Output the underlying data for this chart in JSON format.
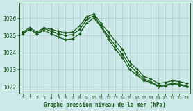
{
  "title": "Graphe pression niveau de la mer (hPa)",
  "background_color": "#cce8e8",
  "grid_color": "#aacccc",
  "line_color": "#1a5c1a",
  "ylim": [
    1021.6,
    1026.9
  ],
  "yticks": [
    1022,
    1023,
    1024,
    1025,
    1026
  ],
  "xlim": [
    -0.5,
    23.5
  ],
  "xticks": [
    0,
    1,
    2,
    3,
    4,
    5,
    6,
    7,
    8,
    9,
    10,
    11,
    12,
    13,
    14,
    15,
    16,
    17,
    18,
    19,
    20,
    21,
    22,
    23
  ],
  "line1_x": [
    0,
    1,
    2,
    3,
    4,
    5,
    6,
    7,
    8,
    9,
    10,
    11,
    12,
    13,
    14,
    15,
    16,
    17,
    18,
    19,
    20,
    21,
    22,
    23
  ],
  "line1_y": [
    1025.2,
    1025.45,
    1025.2,
    1025.45,
    1025.35,
    1025.25,
    1025.15,
    1025.2,
    1025.55,
    1026.1,
    1026.25,
    1025.7,
    1025.2,
    1024.65,
    1024.2,
    1023.45,
    1023.05,
    1022.6,
    1022.45,
    1022.2,
    1022.25,
    1022.35,
    1022.3,
    1022.2
  ],
  "line2_x": [
    0,
    1,
    2,
    3,
    4,
    5,
    6,
    7,
    8,
    9,
    10,
    11,
    12,
    13,
    14,
    15,
    16,
    17,
    18,
    19,
    20,
    21,
    22,
    23
  ],
  "line2_y": [
    1025.1,
    1025.35,
    1025.1,
    1025.4,
    1025.25,
    1025.1,
    1025.0,
    1025.05,
    1025.35,
    1025.95,
    1026.15,
    1025.55,
    1024.95,
    1024.4,
    1023.9,
    1023.25,
    1022.85,
    1022.45,
    1022.3,
    1022.05,
    1022.1,
    1022.2,
    1022.15,
    1022.05
  ],
  "line3_x": [
    0,
    1,
    2,
    3,
    4,
    5,
    6,
    7,
    8,
    9,
    10,
    11,
    12,
    13,
    14,
    15,
    16,
    17,
    18,
    19,
    20,
    21,
    22,
    23
  ],
  "line3_y": [
    1025.15,
    1025.35,
    1025.1,
    1025.3,
    1025.1,
    1024.9,
    1024.75,
    1024.8,
    1025.1,
    1025.75,
    1026.0,
    1025.5,
    1024.8,
    1024.2,
    1023.7,
    1023.0,
    1022.7,
    1022.35,
    1022.25,
    1022.0,
    1022.05,
    1022.15,
    1022.1,
    1022.0
  ]
}
